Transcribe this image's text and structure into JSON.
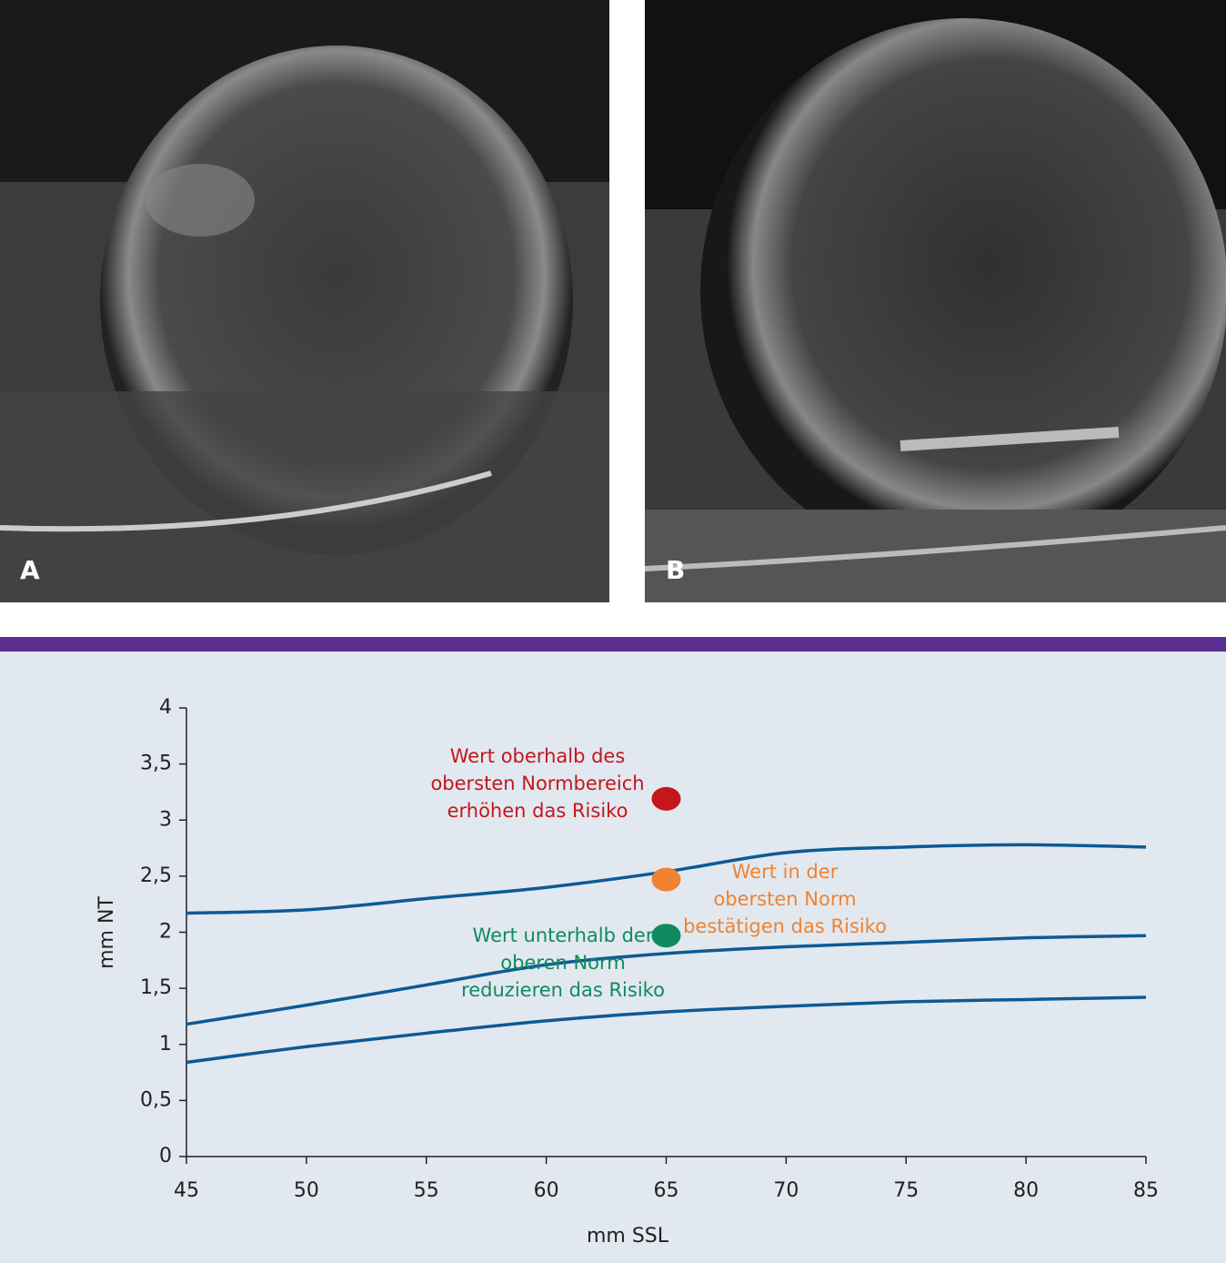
{
  "panels": [
    {
      "label": "A"
    },
    {
      "label": "B"
    }
  ],
  "chart_data": {
    "type": "line",
    "xlabel": "mm SSL",
    "ylabel": "mm NT",
    "x": [
      45,
      50,
      55,
      60,
      65,
      70,
      75,
      80,
      85
    ],
    "series": [
      {
        "color": "#0d5a94",
        "values": [
          2.17,
          2.2,
          2.3,
          2.4,
          2.54,
          2.71,
          2.76,
          2.78,
          2.76
        ]
      },
      {
        "color": "#0d5a94",
        "values": [
          1.18,
          1.35,
          1.53,
          1.71,
          1.81,
          1.87,
          1.91,
          1.95,
          1.97
        ]
      },
      {
        "color": "#0d5a94",
        "values": [
          0.84,
          0.98,
          1.1,
          1.21,
          1.29,
          1.34,
          1.38,
          1.4,
          1.42
        ]
      }
    ],
    "points": [
      {
        "x": 65,
        "y": 3.19,
        "color": "#c4161c",
        "text": [
          "Wert oberhalb des",
          "obersten Normbereich",
          "erhöhen das Risiko"
        ]
      },
      {
        "x": 65,
        "y": 2.47,
        "color": "#f08232",
        "text": [
          "Wert in der",
          "obersten Norm",
          "bestätigen das Risiko"
        ]
      },
      {
        "x": 65,
        "y": 1.97,
        "color": "#0f8a5f",
        "text": [
          "Wert unterhalb der",
          "oberen Norm",
          "reduzieren das Risiko"
        ]
      }
    ],
    "xlim": [
      45,
      85
    ],
    "xticks": [
      45,
      50,
      55,
      60,
      65,
      70,
      75,
      80,
      85
    ],
    "ylim": [
      0,
      4
    ],
    "yticks": [
      0,
      {
        "value": 0.5,
        "label": "0,5"
      },
      1,
      {
        "value": 1.5,
        "label": "1,5"
      },
      2,
      {
        "value": 2.5,
        "label": "2,5"
      },
      3,
      {
        "value": 3.5,
        "label": "3,5"
      },
      4
    ]
  }
}
